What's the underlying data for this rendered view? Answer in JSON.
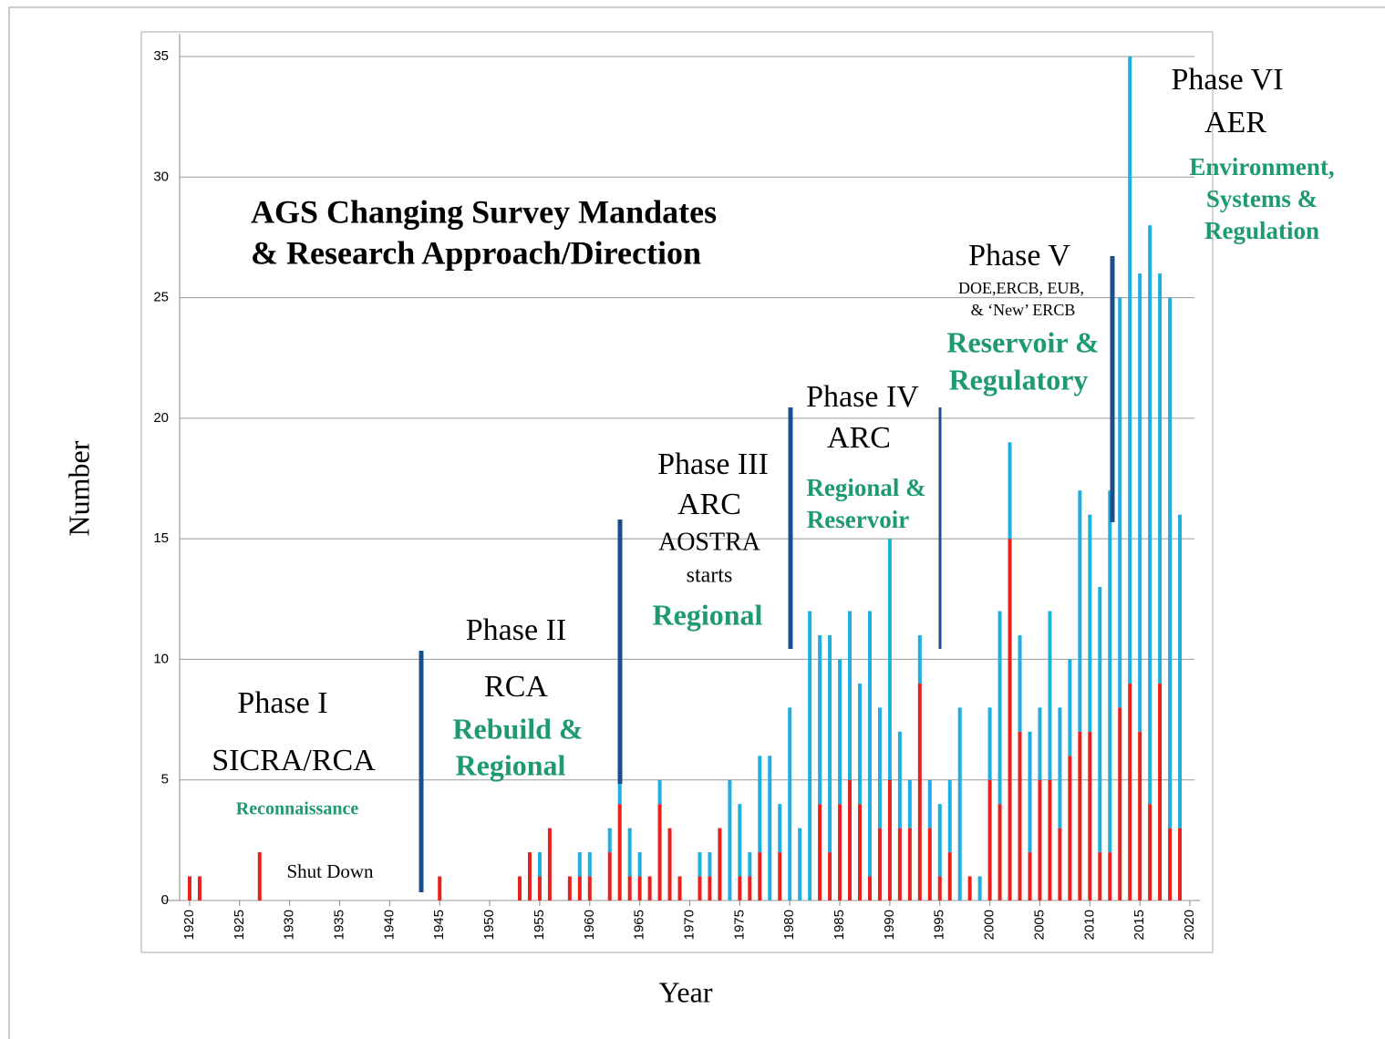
{
  "chart_data": {
    "type": "stacked_bar",
    "title": [
      "AGS Changing Survey Mandates",
      "& Research Approach/Direction"
    ],
    "x_label": "Year",
    "y_label": "Number",
    "x": [
      1920,
      1921,
      1922,
      1923,
      1924,
      1925,
      1926,
      1927,
      1928,
      1929,
      1930,
      1931,
      1932,
      1933,
      1934,
      1935,
      1936,
      1937,
      1938,
      1939,
      1940,
      1941,
      1942,
      1943,
      1944,
      1945,
      1946,
      1947,
      1948,
      1949,
      1950,
      1951,
      1952,
      1953,
      1954,
      1955,
      1956,
      1957,
      1958,
      1959,
      1960,
      1961,
      1962,
      1963,
      1964,
      1965,
      1966,
      1967,
      1968,
      1969,
      1970,
      1971,
      1972,
      1973,
      1974,
      1975,
      1976,
      1977,
      1978,
      1979,
      1980,
      1981,
      1982,
      1983,
      1984,
      1985,
      1986,
      1987,
      1988,
      1989,
      1990,
      1991,
      1992,
      1993,
      1994,
      1995,
      1996,
      1997,
      1998,
      1999,
      2000,
      2001,
      2002,
      2003,
      2004,
      2005,
      2006,
      2007,
      2008,
      2009,
      2010,
      2011,
      2012,
      2013,
      2014,
      2015,
      2016,
      2017,
      2018,
      2019,
      2020
    ],
    "series": [
      {
        "color": "#e8201e",
        "values": [
          1,
          1,
          0,
          0,
          0,
          0,
          0,
          2,
          0,
          0,
          0,
          0,
          0,
          0,
          0,
          0,
          0,
          0,
          0,
          0,
          0,
          0,
          0,
          0,
          0,
          1,
          0,
          0,
          0,
          0,
          0,
          0,
          0,
          1,
          2,
          1,
          3,
          0,
          1,
          1,
          1,
          0,
          2,
          4,
          1,
          1,
          1,
          4,
          3,
          1,
          0,
          1,
          1,
          3,
          0,
          1,
          1,
          2,
          0,
          2,
          0,
          0,
          0,
          4,
          2,
          4,
          5,
          4,
          1,
          3,
          5,
          3,
          3,
          9,
          3,
          1,
          2,
          0,
          1,
          0,
          5,
          4,
          15,
          7,
          2,
          5,
          5,
          3,
          6,
          7,
          7,
          2,
          2,
          8,
          9,
          7,
          4,
          9,
          3,
          3,
          0
        ]
      },
      {
        "color": "#1eaee0",
        "values": [
          0,
          0,
          0,
          0,
          0,
          0,
          0,
          0,
          0,
          0,
          0,
          0,
          0,
          0,
          0,
          0,
          0,
          0,
          0,
          0,
          0,
          0,
          0,
          0,
          0,
          0,
          0,
          0,
          0,
          0,
          0,
          0,
          0,
          0,
          0,
          1,
          0,
          0,
          0,
          1,
          1,
          0,
          1,
          2,
          2,
          1,
          0,
          1,
          0,
          0,
          0,
          1,
          1,
          0,
          5,
          3,
          1,
          4,
          6,
          2,
          8,
          3,
          12,
          7,
          9,
          6,
          7,
          5,
          11,
          5,
          10,
          4,
          2,
          2,
          2,
          3,
          3,
          8,
          0,
          1,
          3,
          8,
          4,
          4,
          5,
          3,
          7,
          5,
          4,
          10,
          9,
          11,
          15,
          17,
          26,
          19,
          24,
          17,
          22,
          13,
          0
        ]
      }
    ],
    "xlim": [
      1919,
      2021
    ],
    "xticks": [
      1920,
      1925,
      1930,
      1935,
      1940,
      1945,
      1950,
      1955,
      1960,
      1965,
      1970,
      1975,
      1980,
      1985,
      1990,
      1995,
      2000,
      2005,
      2010,
      2015,
      2020
    ],
    "ylim": [
      0,
      35
    ],
    "yticks": [
      0,
      5,
      10,
      15,
      20,
      25,
      30,
      35
    ],
    "grid": true,
    "annotations": [
      "Phase I",
      "SICRA/RCA",
      "Reconnaissance",
      "Shut Down",
      "Phase II",
      "RCA",
      "Rebuild &",
      "Regional",
      "Phase III",
      "ARC",
      "AOSTRA",
      "starts",
      "Regional",
      "Phase IV",
      "ARC",
      "Regional &",
      "Reservoir",
      "Phase V",
      "DOE,ERCB, EUB,",
      "& ‘New’ ERCB",
      "Reservoir &",
      "Regulatory",
      "Phase VI",
      "AER",
      "Environment,",
      "Systems &",
      "Regulation"
    ]
  }
}
